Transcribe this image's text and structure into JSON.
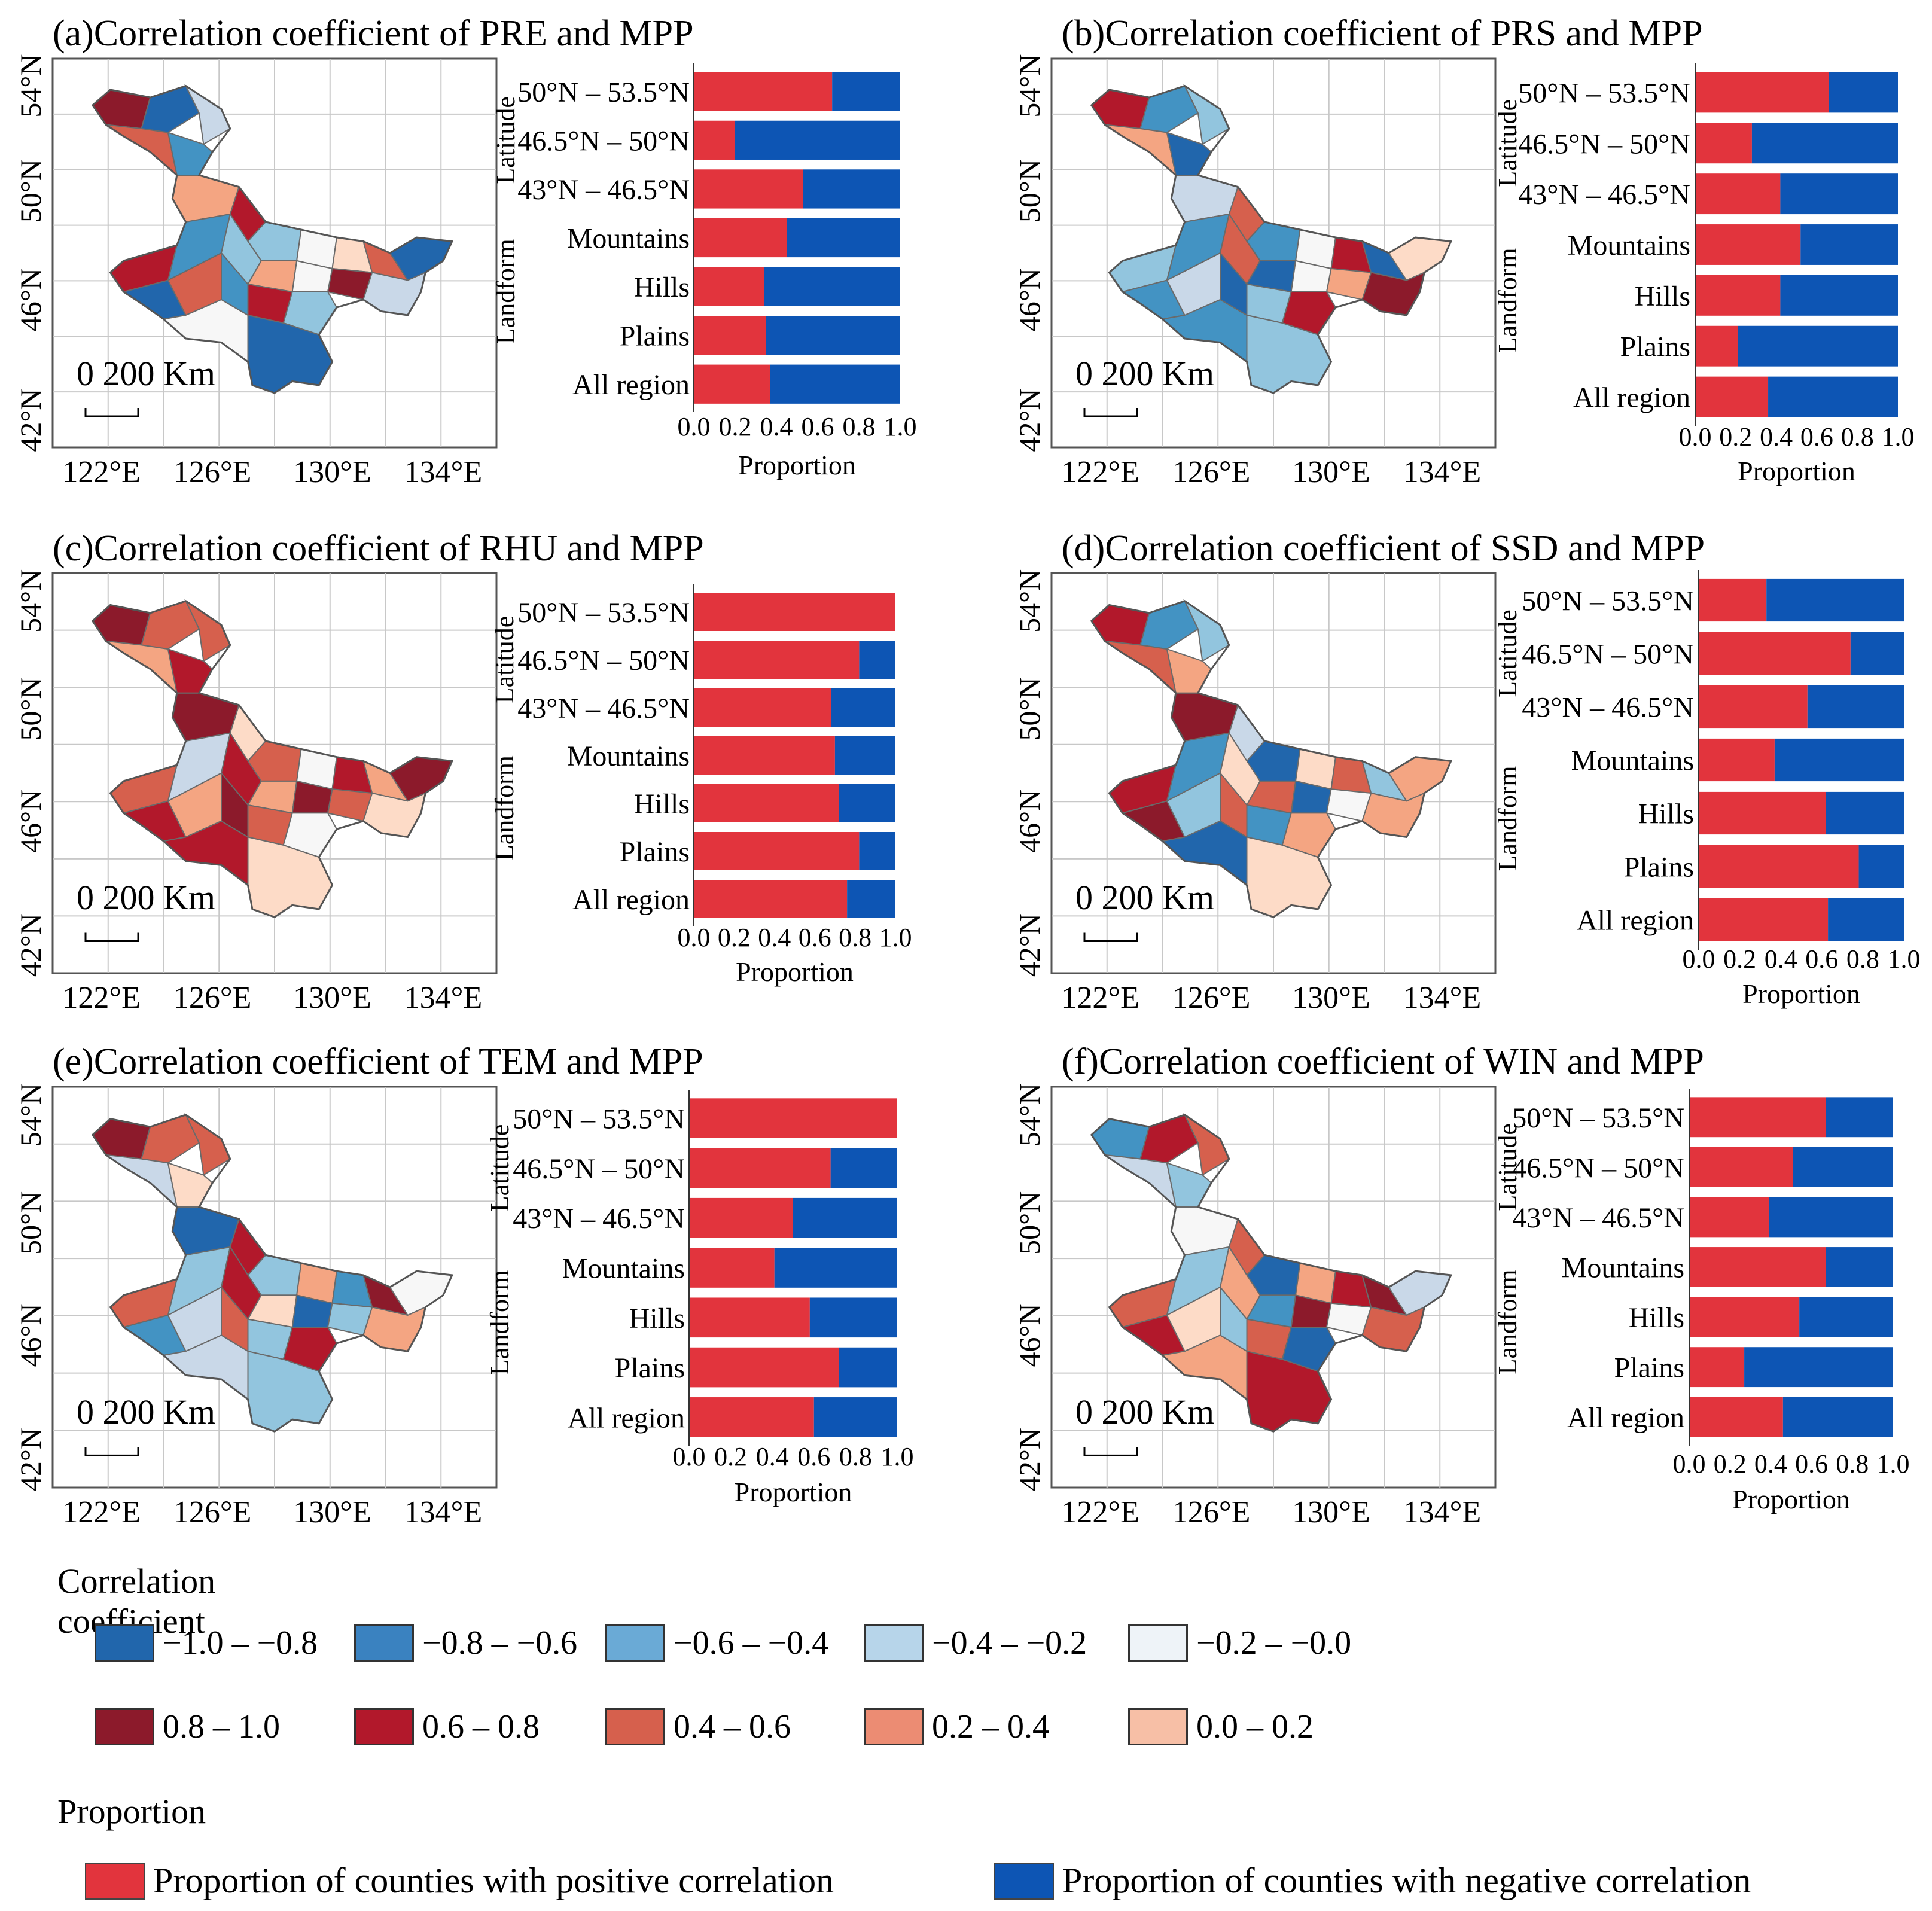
{
  "colors": {
    "positive_bar": "#e2343d",
    "negative_bar": "#0d55b4",
    "grid": "#c8c8c8",
    "region_stroke": "#6a6a6a"
  },
  "axis_common": {
    "xlabel": "Proportion",
    "xticks": [
      "0.0",
      "0.2",
      "0.4",
      "0.6",
      "0.8",
      "1.0"
    ],
    "group_latitude": "Latitude",
    "group_landform": "Landform",
    "map_lat_ticks": [
      "54°N",
      "50°N",
      "46°N",
      "42°N"
    ],
    "map_lon_ticks": [
      "122°E",
      "126°E",
      "130°E",
      "134°E"
    ],
    "scale_bar_label": "0 200 Km"
  },
  "chart_data": [
    {
      "type": "bar",
      "id": "a",
      "title": "(a)Correlation coefficient of PRE and MPP",
      "categories": [
        "50°N – 53.5°N",
        "46.5°N – 50°N",
        "43°N – 46.5°N",
        "Mountains",
        "Hills",
        "Plains",
        "All region"
      ],
      "series": [
        {
          "name": "Proportion of counties with positive correlation",
          "values": [
            0.67,
            0.2,
            0.53,
            0.45,
            0.34,
            0.35,
            0.37
          ]
        },
        {
          "name": "Proportion of counties with negative correlation",
          "values": [
            0.33,
            0.8,
            0.47,
            0.55,
            0.66,
            0.65,
            0.63
          ]
        }
      ],
      "xlim": [
        0,
        1
      ],
      "map_palette": [
        "#8c1a2b",
        "#2166ac",
        "#c9d8e8",
        "#d6604d",
        "#4393c3",
        "#f4a582",
        "#b2182b",
        "#92c5de",
        "#f7f7f7",
        "#fddbc7",
        "#d6604d",
        "#2166ac",
        "#b2182b",
        "#4393c3",
        "#92c5de",
        "#f4a582",
        "#f7f7f7",
        "#8c1a2b",
        "#c9d8e8",
        "#2166ac",
        "#d6604d",
        "#4393c3",
        "#b2182b",
        "#92c5de",
        "#f7f7f7",
        "#2166ac"
      ]
    },
    {
      "type": "bar",
      "id": "b",
      "title": "(b)Correlation coefficient of PRS and MPP",
      "categories": [
        "50°N – 53.5°N",
        "46.5°N – 50°N",
        "43°N – 46.5°N",
        "Mountains",
        "Hills",
        "Plains",
        "All region"
      ],
      "series": [
        {
          "name": "Proportion of counties with positive correlation",
          "values": [
            0.66,
            0.28,
            0.42,
            0.52,
            0.42,
            0.21,
            0.36
          ]
        },
        {
          "name": "Proportion of counties with negative correlation",
          "values": [
            0.34,
            0.72,
            0.58,
            0.48,
            0.58,
            0.79,
            0.64
          ]
        }
      ],
      "xlim": [
        0,
        1
      ],
      "map_palette": [
        "#b2182b",
        "#4393c3",
        "#92c5de",
        "#f4a582",
        "#2166ac",
        "#c9d8e8",
        "#d6604d",
        "#4393c3",
        "#f7f7f7",
        "#b2182b",
        "#2166ac",
        "#fddbc7",
        "#92c5de",
        "#4393c3",
        "#d6604d",
        "#2166ac",
        "#f7f7f7",
        "#f4a582",
        "#8c1a2b",
        "#4393c3",
        "#c9d8e8",
        "#2166ac",
        "#92c5de",
        "#b2182b",
        "#4393c3",
        "#92c5de"
      ]
    },
    {
      "type": "bar",
      "id": "c",
      "title": "(c)Correlation coefficient of RHU and MPP",
      "categories": [
        "50°N – 53.5°N",
        "46.5°N – 50°N",
        "43°N – 46.5°N",
        "Mountains",
        "Hills",
        "Plains",
        "All region"
      ],
      "series": [
        {
          "name": "Proportion of counties with positive correlation",
          "values": [
            1.0,
            0.82,
            0.68,
            0.7,
            0.72,
            0.82,
            0.76
          ]
        },
        {
          "name": "Proportion of counties with negative correlation",
          "values": [
            0.0,
            0.18,
            0.32,
            0.3,
            0.28,
            0.18,
            0.24
          ]
        }
      ],
      "xlim": [
        0,
        1
      ],
      "map_palette": [
        "#8c1a2b",
        "#d6604d",
        "#d6604d",
        "#f4a582",
        "#b2182b",
        "#8c1a2b",
        "#fddbc7",
        "#d6604d",
        "#f7f7f7",
        "#b2182b",
        "#f4a582",
        "#8c1a2b",
        "#d6604d",
        "#c9d8e8",
        "#b2182b",
        "#f4a582",
        "#8c1a2b",
        "#d6604d",
        "#fddbc7",
        "#b2182b",
        "#f4a582",
        "#8c1a2b",
        "#d6604d",
        "#f7f7f7",
        "#b2182b",
        "#fddbc7"
      ]
    },
    {
      "type": "bar",
      "id": "d",
      "title": "(d)Correlation coefficient of SSD and MPP",
      "categories": [
        "50°N – 53.5°N",
        "46.5°N – 50°N",
        "43°N – 46.5°N",
        "Mountains",
        "Hills",
        "Plains",
        "All region"
      ],
      "series": [
        {
          "name": "Proportion of counties with positive correlation",
          "values": [
            0.33,
            0.74,
            0.53,
            0.37,
            0.62,
            0.78,
            0.63
          ]
        },
        {
          "name": "Proportion of counties with negative correlation",
          "values": [
            0.67,
            0.26,
            0.47,
            0.63,
            0.38,
            0.22,
            0.37
          ]
        }
      ],
      "xlim": [
        0,
        1
      ],
      "map_palette": [
        "#b2182b",
        "#4393c3",
        "#92c5de",
        "#d6604d",
        "#f4a582",
        "#8c1a2b",
        "#c9d8e8",
        "#2166ac",
        "#fddbc7",
        "#d6604d",
        "#92c5de",
        "#f4a582",
        "#b2182b",
        "#4393c3",
        "#fddbc7",
        "#d6604d",
        "#2166ac",
        "#f7f7f7",
        "#f4a582",
        "#8c1a2b",
        "#92c5de",
        "#d6604d",
        "#4393c3",
        "#f4a582",
        "#2166ac",
        "#fddbc7"
      ]
    },
    {
      "type": "bar",
      "id": "e",
      "title": "(e)Correlation coefficient of TEM and MPP",
      "categories": [
        "50°N – 53.5°N",
        "46.5°N – 50°N",
        "43°N – 46.5°N",
        "Mountains",
        "Hills",
        "Plains",
        "All region"
      ],
      "series": [
        {
          "name": "Proportion of counties with positive correlation",
          "values": [
            1.0,
            0.68,
            0.5,
            0.41,
            0.58,
            0.72,
            0.6
          ]
        },
        {
          "name": "Proportion of counties with negative correlation",
          "values": [
            0.0,
            0.32,
            0.5,
            0.59,
            0.42,
            0.28,
            0.4
          ]
        }
      ],
      "xlim": [
        0,
        1
      ],
      "map_palette": [
        "#8c1a2b",
        "#d6604d",
        "#d6604d",
        "#c9d8e8",
        "#fddbc7",
        "#2166ac",
        "#b2182b",
        "#92c5de",
        "#f4a582",
        "#4393c3",
        "#8c1a2b",
        "#f7f7f7",
        "#d6604d",
        "#92c5de",
        "#b2182b",
        "#fddbc7",
        "#2166ac",
        "#92c5de",
        "#f4a582",
        "#4393c3",
        "#c9d8e8",
        "#d6604d",
        "#92c5de",
        "#b2182b",
        "#c9d8e8",
        "#92c5de"
      ]
    },
    {
      "type": "bar",
      "id": "f",
      "title": "(f)Correlation coefficient of WIN and MPP",
      "categories": [
        "50°N – 53.5°N",
        "46.5°N – 50°N",
        "43°N – 46.5°N",
        "Mountains",
        "Hills",
        "Plains",
        "All region"
      ],
      "series": [
        {
          "name": "Proportion of counties with positive correlation",
          "values": [
            0.67,
            0.51,
            0.39,
            0.67,
            0.54,
            0.27,
            0.46
          ]
        },
        {
          "name": "Proportion of counties with negative correlation",
          "values": [
            0.33,
            0.49,
            0.61,
            0.33,
            0.46,
            0.73,
            0.54
          ]
        }
      ],
      "xlim": [
        0,
        1
      ],
      "map_palette": [
        "#4393c3",
        "#b2182b",
        "#d6604d",
        "#c9d8e8",
        "#92c5de",
        "#f7f7f7",
        "#d6604d",
        "#2166ac",
        "#f4a582",
        "#b2182b",
        "#8c1a2b",
        "#c9d8e8",
        "#d6604d",
        "#92c5de",
        "#f4a582",
        "#4393c3",
        "#8c1a2b",
        "#f7f7f7",
        "#d6604d",
        "#b2182b",
        "#fddbc7",
        "#92c5de",
        "#d6604d",
        "#2166ac",
        "#f4a582",
        "#b2182b"
      ]
    }
  ],
  "legend": {
    "correlation_title": "Correlation coefficient",
    "correlation_items": [
      {
        "label": "−1.0 – −0.8",
        "color": "#2166ac"
      },
      {
        "label": "−0.8 – −0.6",
        "color": "#3a82c0"
      },
      {
        "label": "−0.6 – −0.4",
        "color": "#6aaad6"
      },
      {
        "label": "−0.4 – −0.2",
        "color": "#b7d5ea"
      },
      {
        "label": "−0.2 – −0.0",
        "color": "#eef3f8"
      },
      {
        "label": "0.8 – 1.0",
        "color": "#8c1a2b"
      },
      {
        "label": "0.6 – 0.8",
        "color": "#b2182b"
      },
      {
        "label": "0.4 – 0.6",
        "color": "#d6604d"
      },
      {
        "label": "0.2 – 0.4",
        "color": "#ec8c73"
      },
      {
        "label": "0.0 – 0.2",
        "color": "#f7bfa6"
      }
    ],
    "proportion_title": "Proportion",
    "proportion_items": [
      {
        "label": "Proportion of counties with positive correlation",
        "color": "#e2343d"
      },
      {
        "label": "Proportion of counties with negative correlation",
        "color": "#0d55b4"
      }
    ]
  }
}
